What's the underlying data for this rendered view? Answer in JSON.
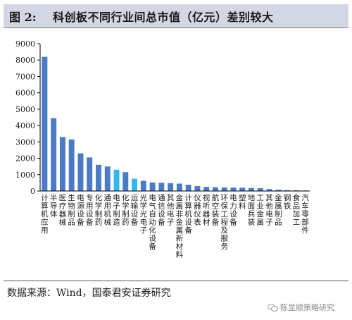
{
  "header": {
    "figure_label": "图 2:",
    "title": "科创板不同行业间总市值（亿元）差别较大"
  },
  "source": "数据来源：Wind，国泰君安证券研究",
  "watermark": "陈显顺策略研究",
  "chart_data": {
    "type": "bar",
    "categories": [
      "计算机应用",
      "半导体",
      "医疗器械",
      "生物制品",
      "电源设备",
      "专用设备",
      "化学制药",
      "通用机械",
      "电子制造",
      "化学制药",
      "运输设备",
      "光学光电子",
      "电气自动化设备",
      "通信设备",
      "其他电子",
      "金属非金属新材料",
      "计算机设备",
      "仪器仪表",
      "视听器材",
      "航空装备",
      "环保工程及服务",
      "电力设备",
      "塑料",
      "地面兵装",
      "工业金属",
      "其他电子",
      "金属制品",
      "钢铁",
      "食品加工",
      "汽车零部件"
    ],
    "category_labels": [
      "计算机应用",
      "半导体",
      "医疗器械",
      "生物制品",
      "电源设备",
      "专用设备",
      "化学制药",
      "通用机械",
      "电子制造",
      "化学制药",
      "运输设备",
      "光学光电子",
      "电气自动化设备",
      "通信设备",
      "其他电子",
      "金属非金属新材料",
      "计算机设备",
      "仪器仪表",
      "视听器材",
      "航空装备",
      "环保工程及服务",
      "电力设备",
      "塑料",
      "地面兵装",
      "工业金属",
      "其他电子",
      "金属制品",
      "钢铁",
      "食品加工",
      "汽车零部件"
    ],
    "values": [
      8200,
      4450,
      3300,
      3150,
      2300,
      2050,
      1600,
      1500,
      1300,
      1150,
      750,
      620,
      520,
      500,
      480,
      450,
      380,
      300,
      250,
      230,
      220,
      210,
      200,
      180,
      170,
      120,
      80,
      50,
      40,
      30
    ],
    "highlight_indices": [
      8,
      10
    ],
    "ylim": [
      0,
      9000
    ],
    "yticks": [
      0,
      1000,
      2000,
      3000,
      4000,
      5000,
      6000,
      7000,
      8000,
      9000
    ],
    "ytick_labels": [
      "0",
      "1000",
      "2000",
      "3000",
      "4000",
      "5000",
      "6000",
      "7000",
      "8000",
      "9000"
    ],
    "grid": false,
    "colors": {
      "bar": "#4a7bc4",
      "highlight": "#33b8f0",
      "axis": "#000000"
    }
  }
}
